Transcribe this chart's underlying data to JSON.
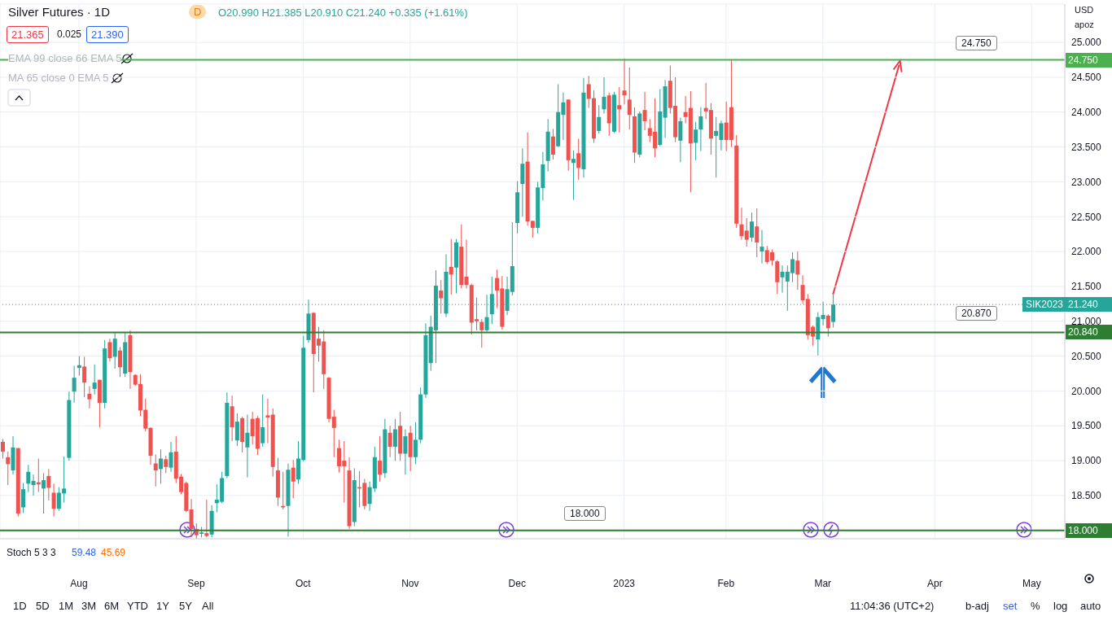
{
  "chart_data": {
    "type": "candlestick",
    "title": "Silver Futures · 1D",
    "subtitle": "O20.990 H21.385 L20.910 C21.240 +0.335 (+1.61%)",
    "categories": [
      null,
      null,
      null,
      null,
      null,
      null,
      null,
      null,
      null,
      null,
      null,
      null,
      null,
      null,
      null,
      "Aug",
      null,
      null,
      null,
      null,
      null,
      null,
      null,
      null,
      null,
      null,
      null,
      null,
      null,
      null,
      null,
      null,
      null,
      null,
      null,
      null,
      null,
      null,
      "Sep",
      null,
      null,
      null,
      null,
      null,
      null,
      null,
      null,
      null,
      null,
      null,
      null,
      null,
      null,
      null,
      null,
      null,
      null,
      null,
      null,
      "Oct",
      null,
      null,
      null,
      null,
      null,
      null,
      null,
      null,
      null,
      null,
      null,
      null,
      null,
      null,
      null,
      null,
      null,
      null,
      null,
      null,
      "Nov",
      null,
      null,
      null,
      null,
      null,
      null,
      null,
      null,
      null,
      null,
      null,
      null,
      null,
      null,
      null,
      null,
      null,
      null,
      null,
      null,
      "Dec",
      null,
      null,
      null,
      null,
      null,
      null,
      null,
      null,
      null,
      null,
      null,
      null,
      null,
      null,
      null,
      null,
      null,
      null,
      null,
      null,
      "2023",
      null,
      null,
      null,
      null,
      null,
      null,
      null,
      null,
      null,
      null,
      null,
      null,
      null,
      null,
      null,
      null,
      null,
      null,
      null,
      "Feb",
      null,
      null,
      null,
      null,
      null,
      null,
      null,
      null,
      null,
      null,
      null,
      null,
      null,
      null,
      null,
      null,
      null,
      null,
      "Mar",
      null,
      null,
      null,
      null,
      null,
      null,
      null,
      null,
      null,
      null,
      null,
      null,
      null,
      null,
      null,
      null,
      null,
      null,
      null,
      null,
      null,
      "Apr",
      null,
      null,
      null,
      null,
      null,
      null,
      null,
      null,
      null,
      null,
      null,
      null,
      null,
      null,
      null,
      null,
      null,
      null,
      "May",
      null,
      null,
      null,
      null,
      null,
      null
    ],
    "ohlc": [
      [
        19.27,
        19.31,
        19.03,
        19.13
      ],
      [
        19.05,
        19.13,
        18.65,
        18.95
      ],
      [
        18.86,
        19.35,
        18.8,
        19.19
      ],
      [
        19.18,
        19.18,
        18.2,
        18.24
      ],
      [
        18.33,
        18.68,
        18.25,
        18.59
      ],
      [
        18.67,
        18.94,
        18.55,
        18.84
      ],
      [
        18.65,
        18.8,
        18.5,
        18.71
      ],
      [
        18.69,
        19.03,
        18.55,
        18.66
      ],
      [
        18.6,
        18.82,
        18.24,
        18.72
      ],
      [
        18.78,
        18.88,
        18.43,
        18.61
      ],
      [
        18.54,
        18.67,
        18.2,
        18.31
      ],
      [
        18.31,
        18.62,
        18.28,
        18.54
      ],
      [
        18.53,
        19.06,
        18.4,
        18.6
      ],
      [
        19.04,
        19.99,
        19.0,
        19.87
      ],
      [
        19.99,
        20.36,
        19.83,
        20.19
      ],
      [
        20.33,
        20.5,
        20.22,
        20.37
      ],
      [
        20.35,
        20.49,
        19.91,
        20.12
      ],
      [
        19.96,
        20.07,
        19.75,
        19.88
      ],
      [
        20.03,
        20.38,
        19.95,
        20.12
      ],
      [
        20.16,
        20.16,
        19.48,
        19.83
      ],
      [
        19.83,
        20.73,
        19.75,
        20.61
      ],
      [
        20.7,
        20.75,
        20.42,
        20.47
      ],
      [
        20.49,
        20.84,
        20.32,
        20.75
      ],
      [
        20.58,
        20.63,
        20.2,
        20.34
      ],
      [
        20.25,
        20.84,
        20.2,
        20.7
      ],
      [
        20.8,
        20.87,
        20.03,
        20.27
      ],
      [
        20.23,
        20.24,
        20.07,
        20.09
      ],
      [
        20.1,
        20.24,
        19.64,
        19.72
      ],
      [
        19.73,
        19.89,
        19.42,
        19.46
      ],
      [
        19.47,
        19.48,
        18.94,
        19.07
      ],
      [
        18.96,
        19.09,
        18.63,
        18.86
      ],
      [
        18.88,
        19.16,
        18.67,
        19.03
      ],
      [
        19.02,
        19.07,
        18.82,
        18.91
      ],
      [
        18.9,
        19.27,
        18.84,
        19.12
      ],
      [
        19.13,
        19.35,
        18.68,
        18.74
      ],
      [
        18.77,
        18.81,
        18.52,
        18.55
      ],
      [
        18.68,
        18.7,
        18.26,
        18.28
      ],
      [
        18.3,
        18.45,
        17.9,
        18.02
      ],
      [
        18.02,
        18.1,
        17.88,
        17.93
      ],
      [
        17.95,
        18.05,
        17.9,
        17.97
      ],
      [
        17.96,
        18.44,
        17.9,
        17.92
      ],
      [
        17.94,
        18.36,
        17.9,
        18.28
      ],
      [
        18.39,
        18.66,
        18.26,
        18.44
      ],
      [
        18.41,
        18.84,
        18.39,
        18.75
      ],
      [
        18.78,
        19.98,
        18.75,
        19.83
      ],
      [
        19.78,
        19.93,
        19.28,
        19.48
      ],
      [
        19.29,
        19.68,
        19.21,
        19.56
      ],
      [
        19.61,
        19.63,
        19.12,
        19.27
      ],
      [
        19.19,
        19.66,
        18.76,
        19.4
      ],
      [
        19.6,
        19.7,
        19.23,
        19.35
      ],
      [
        19.61,
        19.64,
        19.08,
        19.17
      ],
      [
        19.25,
        19.95,
        19.2,
        19.48
      ],
      [
        19.65,
        19.89,
        19.25,
        19.62
      ],
      [
        19.66,
        19.75,
        18.77,
        18.91
      ],
      [
        18.86,
        19.04,
        18.35,
        18.47
      ],
      [
        18.35,
        18.84,
        18.3,
        18.33
      ],
      [
        18.35,
        18.96,
        17.91,
        18.87
      ],
      [
        18.9,
        19.01,
        18.46,
        18.7
      ],
      [
        18.73,
        19.28,
        18.67,
        19.03
      ],
      [
        19.01,
        20.79,
        18.99,
        20.62
      ],
      [
        20.73,
        21.31,
        20.69,
        21.11
      ],
      [
        21.12,
        21.13,
        19.98,
        20.53
      ],
      [
        20.75,
        20.92,
        20.42,
        20.65
      ],
      [
        20.71,
        20.87,
        20.03,
        20.24
      ],
      [
        20.19,
        20.2,
        19.55,
        19.6
      ],
      [
        19.63,
        19.73,
        19.05,
        19.47
      ],
      [
        19.18,
        19.3,
        18.83,
        18.92
      ],
      [
        19.0,
        19.28,
        18.4,
        18.92
      ],
      [
        18.86,
        19.05,
        18.02,
        18.06
      ],
      [
        18.12,
        18.89,
        18.06,
        18.72
      ],
      [
        18.62,
        18.85,
        18.33,
        18.6
      ],
      [
        18.68,
        18.74,
        18.3,
        18.35
      ],
      [
        18.38,
        18.7,
        18.28,
        18.62
      ],
      [
        18.6,
        19.2,
        18.55,
        19.05
      ],
      [
        19.0,
        19.35,
        18.7,
        18.8
      ],
      [
        18.82,
        19.6,
        18.75,
        19.45
      ],
      [
        19.4,
        19.5,
        19.05,
        19.2
      ],
      [
        19.2,
        19.6,
        19.0,
        19.45
      ],
      [
        19.5,
        19.7,
        19.0,
        19.1
      ],
      [
        19.1,
        19.45,
        18.8,
        19.35
      ],
      [
        19.4,
        19.5,
        18.85,
        19.05
      ],
      [
        19.05,
        19.55,
        18.95,
        19.3
      ],
      [
        19.3,
        20.05,
        19.25,
        19.95
      ],
      [
        19.95,
        20.97,
        19.9,
        20.8
      ],
      [
        20.4,
        21.08,
        20.29,
        20.92
      ],
      [
        20.87,
        21.73,
        20.4,
        21.51
      ],
      [
        21.44,
        21.59,
        21.11,
        21.33
      ],
      [
        21.11,
        21.96,
        21.06,
        21.71
      ],
      [
        21.78,
        22.18,
        21.38,
        21.67
      ],
      [
        21.77,
        22.18,
        21.4,
        22.13
      ],
      [
        22.07,
        22.39,
        21.47,
        21.52
      ],
      [
        21.64,
        22.17,
        21.47,
        21.52
      ],
      [
        21.52,
        21.54,
        20.81,
        20.98
      ],
      [
        21.03,
        21.34,
        20.87,
        21.0
      ],
      [
        20.99,
        21.03,
        20.62,
        20.87
      ],
      [
        20.87,
        21.38,
        20.85,
        21.06
      ],
      [
        21.1,
        21.64,
        20.96,
        21.39
      ],
      [
        21.62,
        21.74,
        21.19,
        21.44
      ],
      [
        21.47,
        21.65,
        20.88,
        20.92
      ],
      [
        21.15,
        21.64,
        21.09,
        21.46
      ],
      [
        21.42,
        22.42,
        21.37,
        21.79
      ],
      [
        22.41,
        23.01,
        22.26,
        22.85
      ],
      [
        22.97,
        23.48,
        22.5,
        23.26
      ],
      [
        23.29,
        23.71,
        22.37,
        22.43
      ],
      [
        22.44,
        22.44,
        22.2,
        22.34
      ],
      [
        22.34,
        23.0,
        22.26,
        22.92
      ],
      [
        22.91,
        23.43,
        22.73,
        23.25
      ],
      [
        23.3,
        23.9,
        23.15,
        23.72
      ],
      [
        23.65,
        23.76,
        23.32,
        23.39
      ],
      [
        23.51,
        24.4,
        23.5,
        24.0
      ],
      [
        23.96,
        24.28,
        23.6,
        24.14
      ],
      [
        24.18,
        24.18,
        23.16,
        23.31
      ],
      [
        23.27,
        23.45,
        22.74,
        23.33
      ],
      [
        23.41,
        23.62,
        23.03,
        23.2
      ],
      [
        23.18,
        24.49,
        23.06,
        24.28
      ],
      [
        24.4,
        24.52,
        24.06,
        24.19
      ],
      [
        24.2,
        24.31,
        23.56,
        23.62
      ],
      [
        23.73,
        24.1,
        23.69,
        23.93
      ],
      [
        24.04,
        24.5,
        23.98,
        24.22
      ],
      [
        24.24,
        24.28,
        23.66,
        23.84
      ],
      [
        23.72,
        24.29,
        23.7,
        24.25
      ],
      [
        24.1,
        24.36,
        23.71,
        24.04
      ],
      [
        24.31,
        24.77,
        24.11,
        24.24
      ],
      [
        24.18,
        24.64,
        23.75,
        23.96
      ],
      [
        23.94,
        24.07,
        23.27,
        23.42
      ],
      [
        23.39,
        24.01,
        23.35,
        23.98
      ],
      [
        24.03,
        24.29,
        23.74,
        23.87
      ],
      [
        23.77,
        23.9,
        23.57,
        23.66
      ],
      [
        23.72,
        24.2,
        23.35,
        23.48
      ],
      [
        23.53,
        24.33,
        23.51,
        24.01
      ],
      [
        23.92,
        24.46,
        23.63,
        24.37
      ],
      [
        24.45,
        24.67,
        23.98,
        24.06
      ],
      [
        24.09,
        24.5,
        23.57,
        23.64
      ],
      [
        23.59,
        23.92,
        23.28,
        23.87
      ],
      [
        24.0,
        24.23,
        23.84,
        23.93
      ],
      [
        24.06,
        24.3,
        22.85,
        23.55
      ],
      [
        23.56,
        23.86,
        23.31,
        23.75
      ],
      [
        23.75,
        24.07,
        23.44,
        23.94
      ],
      [
        24.06,
        24.42,
        23.9,
        24.01
      ],
      [
        24.03,
        24.13,
        23.39,
        23.62
      ],
      [
        23.66,
        23.93,
        23.06,
        23.73
      ],
      [
        23.6,
        23.88,
        23.45,
        23.84
      ],
      [
        23.85,
        24.15,
        23.44,
        23.6
      ],
      [
        24.07,
        24.75,
        23.5,
        23.6
      ],
      [
        23.52,
        23.67,
        22.34,
        22.4
      ],
      [
        22.39,
        22.63,
        22.17,
        22.22
      ],
      [
        22.3,
        22.48,
        22.07,
        22.17
      ],
      [
        22.2,
        22.56,
        22.14,
        22.43
      ],
      [
        22.36,
        22.62,
        21.92,
        22.13
      ],
      [
        22.0,
        22.31,
        21.83,
        22.07
      ],
      [
        22.02,
        22.08,
        21.82,
        21.85
      ],
      [
        21.99,
        22.03,
        21.8,
        21.87
      ],
      [
        21.86,
        21.88,
        21.39,
        21.56
      ],
      [
        21.63,
        21.8,
        21.41,
        21.71
      ],
      [
        21.57,
        21.8,
        21.15,
        21.71
      ],
      [
        21.69,
        21.99,
        21.56,
        21.89
      ],
      [
        21.87,
        22.0,
        21.45,
        21.67
      ],
      [
        21.52,
        21.66,
        21.25,
        21.3
      ],
      [
        21.32,
        21.39,
        20.74,
        20.8
      ],
      [
        20.92,
        20.94,
        20.65,
        20.78
      ],
      [
        20.74,
        21.13,
        20.51,
        21.06
      ],
      [
        21.03,
        21.28,
        20.94,
        21.09
      ],
      [
        21.08,
        21.1,
        20.78,
        20.9
      ],
      [
        20.99,
        21.385,
        20.91,
        21.24
      ],
      null,
      null,
      null,
      null,
      null,
      null,
      null,
      null,
      null,
      null,
      null,
      null,
      null,
      null,
      null,
      null,
      null,
      null,
      null,
      null,
      null,
      null,
      null,
      null,
      null,
      null,
      null,
      null,
      null,
      null,
      null,
      null,
      null,
      null,
      null,
      null,
      null,
      null,
      null,
      null,
      null,
      null,
      null,
      null,
      null
    ],
    "ylim": [
      17.88,
      25.55
    ],
    "yticks": [
      {
        "value": 18,
        "label": null
      },
      {
        "value": 18.5,
        "label": "18.500"
      },
      {
        "value": 19,
        "label": "19.000"
      },
      {
        "value": 19.5,
        "label": "19.500"
      },
      {
        "value": 20,
        "label": "20.000"
      },
      {
        "value": 20.5,
        "label": "20.500"
      },
      {
        "value": 21,
        "label": "21.000"
      },
      {
        "value": 21.5,
        "label": "21.500"
      },
      {
        "value": 22,
        "label": "22.000"
      },
      {
        "value": 22.5,
        "label": "22.500"
      },
      {
        "value": 23,
        "label": "23.000"
      },
      {
        "value": 23.5,
        "label": "23.500"
      },
      {
        "value": 24,
        "label": "24.000"
      },
      {
        "value": 24.5,
        "label": "24.500"
      },
      {
        "value": 25,
        "label": "25.000"
      }
    ],
    "grid": true,
    "ref_lines": [
      {
        "axis": "y",
        "value": 24.75,
        "label": "24.750",
        "color": "#4caf50"
      },
      {
        "axis": "y",
        "value": 20.84,
        "label": "20.840",
        "color": "#2e7d32"
      },
      {
        "axis": "y",
        "value": 18,
        "label": "18.000",
        "color": "#2e7d32"
      },
      {
        "axis": "y",
        "value": 21.24,
        "label": "21.240",
        "color": "#26a69a",
        "line_style": "dotted"
      }
    ],
    "annotations": [
      "21.365",
      "0.025",
      "21.390",
      "EMA 99 close 66 EMA 5",
      "MA 65 close 0 EMA 5",
      "Stoch 5 3 3",
      "59.48",
      "45.69",
      "USD",
      "apoz",
      "1D",
      "5D",
      "1M",
      "3M",
      "6M",
      "YTD",
      "1Y",
      "5Y",
      "All",
      "11:04:36 (UTC+2)",
      "b-adj",
      "set",
      "%",
      "log",
      "auto",
      {
        "text": "SIK2023",
        "y": 21.24
      },
      {
        "text": "24.750",
        "y": 24.75
      },
      {
        "text": "20.870",
        "y": 20.87
      },
      {
        "text": "18.000",
        "y": 18
      },
      "D"
    ]
  }
}
